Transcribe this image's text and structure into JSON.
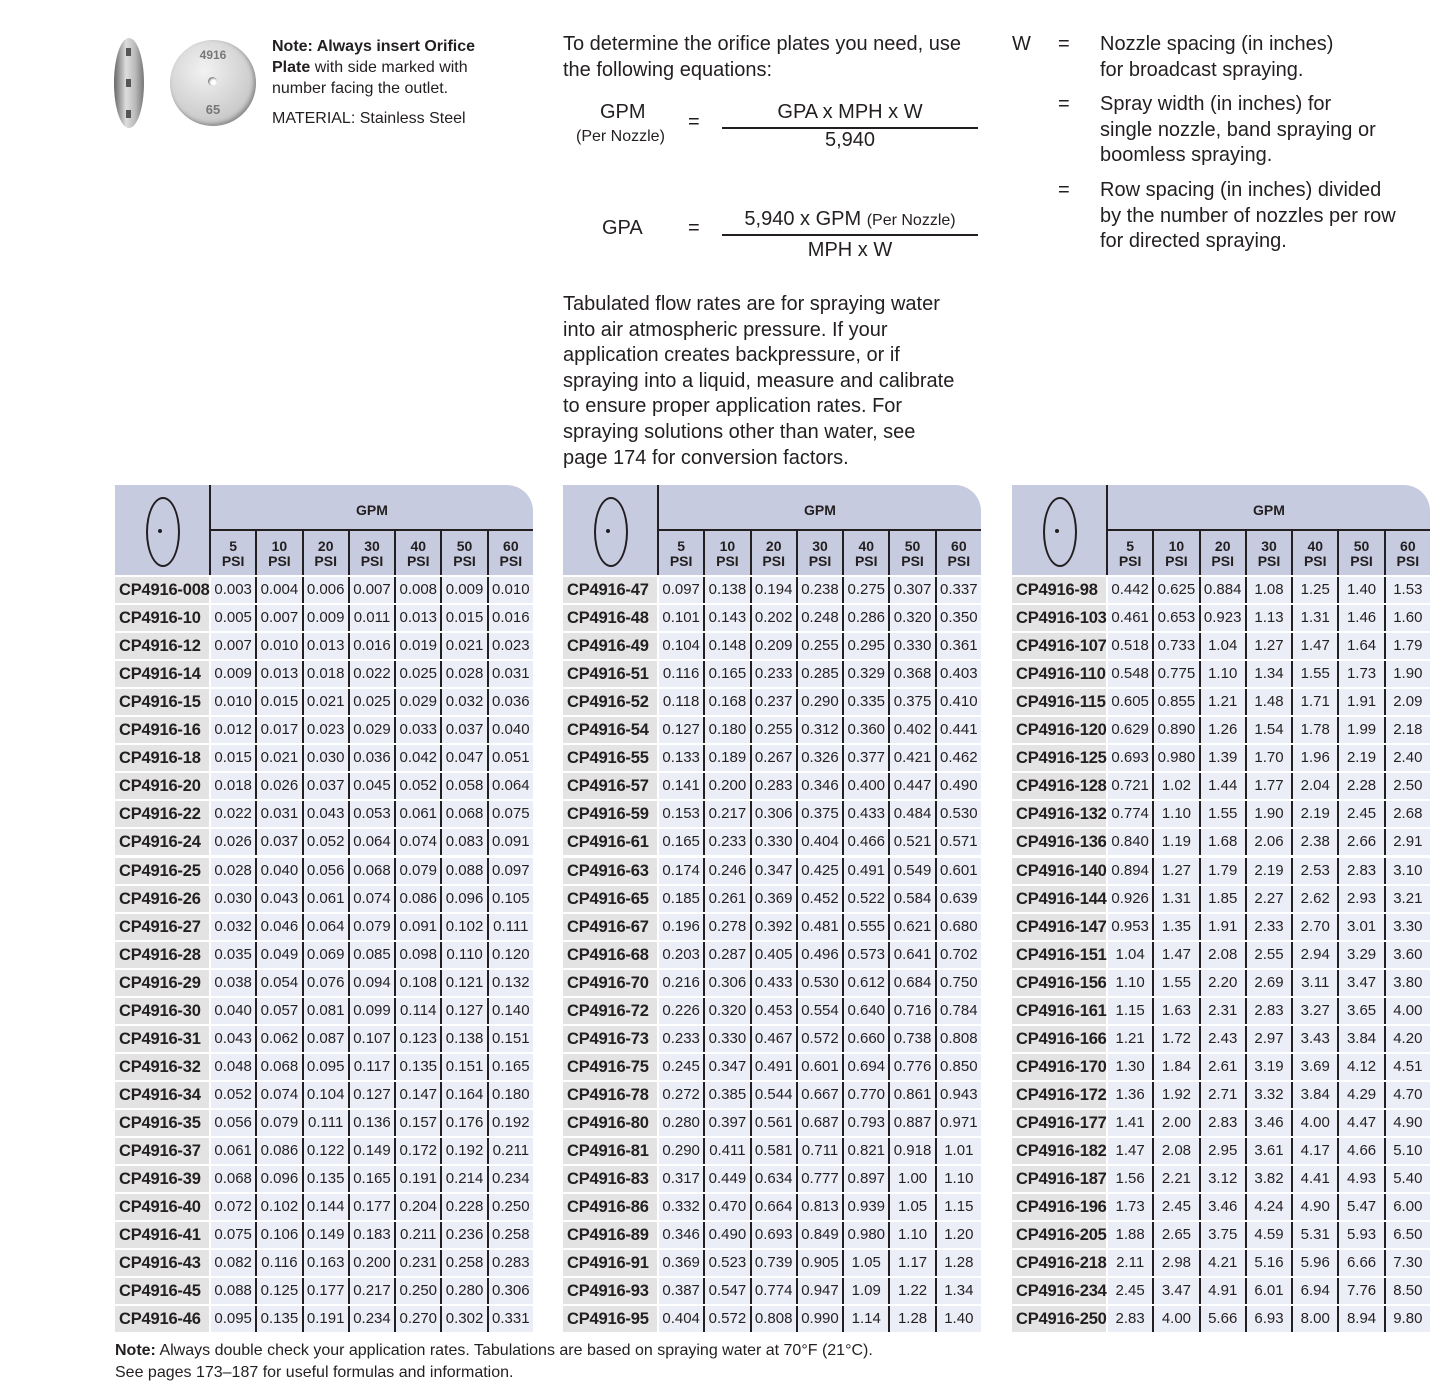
{
  "product_image": {
    "plate_marking_top": "4916",
    "plate_marking_bottom": "65"
  },
  "note": {
    "bold": "Note: Always insert Orifice Plate",
    "text": " with side marked with number facing the outlet."
  },
  "material": "MATERIAL: Stainless Steel",
  "equations": {
    "intro": "To determine the orifice plates you need, use the following equations:",
    "eq1": {
      "lhs": "GPM",
      "lhs_sub": "(Per Nozzle)",
      "equals": "=",
      "numerator": "GPA x MPH x W",
      "denominator": "5,940"
    },
    "eq2": {
      "lhs": "GPA",
      "equals": "=",
      "numerator": "5,940 x GPM",
      "numerator_sub": "(Per Nozzle)",
      "denominator": "MPH x W"
    }
  },
  "definitions": {
    "symbol": "W",
    "items": [
      {
        "equals": "=",
        "text": "Nozzle spacing (in inches) for broadcast spraying."
      },
      {
        "equals": "=",
        "text": "Spray width (in inches) for single nozzle, band spraying or boomless spraying."
      },
      {
        "equals": "=",
        "text": "Row spacing (in inches) divided by the number of nozzles per row for directed spraying."
      }
    ]
  },
  "tabulated_note": "Tabulated flow rates are for spraying water into air atmospheric pressure. If your application creates backpressure, or if spraying into a liquid, measure and calibrate to ensure proper application rates. For spraying solutions other than water, see page 174 for conversion factors.",
  "table_header": {
    "group": "GPM",
    "columns": [
      [
        "5",
        "PSI"
      ],
      [
        "10",
        "PSI"
      ],
      [
        "20",
        "PSI"
      ],
      [
        "30",
        "PSI"
      ],
      [
        "40",
        "PSI"
      ],
      [
        "50",
        "PSI"
      ],
      [
        "60",
        "PSI"
      ]
    ],
    "header_color": "#c7cbe0"
  },
  "tables": [
    {
      "rows": [
        [
          "CP4916-008",
          "0.003",
          "0.004",
          "0.006",
          "0.007",
          "0.008",
          "0.009",
          "0.010"
        ],
        [
          "CP4916-10",
          "0.005",
          "0.007",
          "0.009",
          "0.011",
          "0.013",
          "0.015",
          "0.016"
        ],
        [
          "CP4916-12",
          "0.007",
          "0.010",
          "0.013",
          "0.016",
          "0.019",
          "0.021",
          "0.023"
        ],
        [
          "CP4916-14",
          "0.009",
          "0.013",
          "0.018",
          "0.022",
          "0.025",
          "0.028",
          "0.031"
        ],
        [
          "CP4916-15",
          "0.010",
          "0.015",
          "0.021",
          "0.025",
          "0.029",
          "0.032",
          "0.036"
        ],
        [
          "CP4916-16",
          "0.012",
          "0.017",
          "0.023",
          "0.029",
          "0.033",
          "0.037",
          "0.040"
        ],
        [
          "CP4916-18",
          "0.015",
          "0.021",
          "0.030",
          "0.036",
          "0.042",
          "0.047",
          "0.051"
        ],
        [
          "CP4916-20",
          "0.018",
          "0.026",
          "0.037",
          "0.045",
          "0.052",
          "0.058",
          "0.064"
        ],
        [
          "CP4916-22",
          "0.022",
          "0.031",
          "0.043",
          "0.053",
          "0.061",
          "0.068",
          "0.075"
        ],
        [
          "CP4916-24",
          "0.026",
          "0.037",
          "0.052",
          "0.064",
          "0.074",
          "0.083",
          "0.091"
        ],
        [
          "CP4916-25",
          "0.028",
          "0.040",
          "0.056",
          "0.068",
          "0.079",
          "0.088",
          "0.097"
        ],
        [
          "CP4916-26",
          "0.030",
          "0.043",
          "0.061",
          "0.074",
          "0.086",
          "0.096",
          "0.105"
        ],
        [
          "CP4916-27",
          "0.032",
          "0.046",
          "0.064",
          "0.079",
          "0.091",
          "0.102",
          "0.111"
        ],
        [
          "CP4916-28",
          "0.035",
          "0.049",
          "0.069",
          "0.085",
          "0.098",
          "0.110",
          "0.120"
        ],
        [
          "CP4916-29",
          "0.038",
          "0.054",
          "0.076",
          "0.094",
          "0.108",
          "0.121",
          "0.132"
        ],
        [
          "CP4916-30",
          "0.040",
          "0.057",
          "0.081",
          "0.099",
          "0.114",
          "0.127",
          "0.140"
        ],
        [
          "CP4916-31",
          "0.043",
          "0.062",
          "0.087",
          "0.107",
          "0.123",
          "0.138",
          "0.151"
        ],
        [
          "CP4916-32",
          "0.048",
          "0.068",
          "0.095",
          "0.117",
          "0.135",
          "0.151",
          "0.165"
        ],
        [
          "CP4916-34",
          "0.052",
          "0.074",
          "0.104",
          "0.127",
          "0.147",
          "0.164",
          "0.180"
        ],
        [
          "CP4916-35",
          "0.056",
          "0.079",
          "0.111",
          "0.136",
          "0.157",
          "0.176",
          "0.192"
        ],
        [
          "CP4916-37",
          "0.061",
          "0.086",
          "0.122",
          "0.149",
          "0.172",
          "0.192",
          "0.211"
        ],
        [
          "CP4916-39",
          "0.068",
          "0.096",
          "0.135",
          "0.165",
          "0.191",
          "0.214",
          "0.234"
        ],
        [
          "CP4916-40",
          "0.072",
          "0.102",
          "0.144",
          "0.177",
          "0.204",
          "0.228",
          "0.250"
        ],
        [
          "CP4916-41",
          "0.075",
          "0.106",
          "0.149",
          "0.183",
          "0.211",
          "0.236",
          "0.258"
        ],
        [
          "CP4916-43",
          "0.082",
          "0.116",
          "0.163",
          "0.200",
          "0.231",
          "0.258",
          "0.283"
        ],
        [
          "CP4916-45",
          "0.088",
          "0.125",
          "0.177",
          "0.217",
          "0.250",
          "0.280",
          "0.306"
        ],
        [
          "CP4916-46",
          "0.095",
          "0.135",
          "0.191",
          "0.234",
          "0.270",
          "0.302",
          "0.331"
        ]
      ]
    },
    {
      "rows": [
        [
          "CP4916-47",
          "0.097",
          "0.138",
          "0.194",
          "0.238",
          "0.275",
          "0.307",
          "0.337"
        ],
        [
          "CP4916-48",
          "0.101",
          "0.143",
          "0.202",
          "0.248",
          "0.286",
          "0.320",
          "0.350"
        ],
        [
          "CP4916-49",
          "0.104",
          "0.148",
          "0.209",
          "0.255",
          "0.295",
          "0.330",
          "0.361"
        ],
        [
          "CP4916-51",
          "0.116",
          "0.165",
          "0.233",
          "0.285",
          "0.329",
          "0.368",
          "0.403"
        ],
        [
          "CP4916-52",
          "0.118",
          "0.168",
          "0.237",
          "0.290",
          "0.335",
          "0.375",
          "0.410"
        ],
        [
          "CP4916-54",
          "0.127",
          "0.180",
          "0.255",
          "0.312",
          "0.360",
          "0.402",
          "0.441"
        ],
        [
          "CP4916-55",
          "0.133",
          "0.189",
          "0.267",
          "0.326",
          "0.377",
          "0.421",
          "0.462"
        ],
        [
          "CP4916-57",
          "0.141",
          "0.200",
          "0.283",
          "0.346",
          "0.400",
          "0.447",
          "0.490"
        ],
        [
          "CP4916-59",
          "0.153",
          "0.217",
          "0.306",
          "0.375",
          "0.433",
          "0.484",
          "0.530"
        ],
        [
          "CP4916-61",
          "0.165",
          "0.233",
          "0.330",
          "0.404",
          "0.466",
          "0.521",
          "0.571"
        ],
        [
          "CP4916-63",
          "0.174",
          "0.246",
          "0.347",
          "0.425",
          "0.491",
          "0.549",
          "0.601"
        ],
        [
          "CP4916-65",
          "0.185",
          "0.261",
          "0.369",
          "0.452",
          "0.522",
          "0.584",
          "0.639"
        ],
        [
          "CP4916-67",
          "0.196",
          "0.278",
          "0.392",
          "0.481",
          "0.555",
          "0.621",
          "0.680"
        ],
        [
          "CP4916-68",
          "0.203",
          "0.287",
          "0.405",
          "0.496",
          "0.573",
          "0.641",
          "0.702"
        ],
        [
          "CP4916-70",
          "0.216",
          "0.306",
          "0.433",
          "0.530",
          "0.612",
          "0.684",
          "0.750"
        ],
        [
          "CP4916-72",
          "0.226",
          "0.320",
          "0.453",
          "0.554",
          "0.640",
          "0.716",
          "0.784"
        ],
        [
          "CP4916-73",
          "0.233",
          "0.330",
          "0.467",
          "0.572",
          "0.660",
          "0.738",
          "0.808"
        ],
        [
          "CP4916-75",
          "0.245",
          "0.347",
          "0.491",
          "0.601",
          "0.694",
          "0.776",
          "0.850"
        ],
        [
          "CP4916-78",
          "0.272",
          "0.385",
          "0.544",
          "0.667",
          "0.770",
          "0.861",
          "0.943"
        ],
        [
          "CP4916-80",
          "0.280",
          "0.397",
          "0.561",
          "0.687",
          "0.793",
          "0.887",
          "0.971"
        ],
        [
          "CP4916-81",
          "0.290",
          "0.411",
          "0.581",
          "0.711",
          "0.821",
          "0.918",
          "1.01"
        ],
        [
          "CP4916-83",
          "0.317",
          "0.449",
          "0.634",
          "0.777",
          "0.897",
          "1.00",
          "1.10"
        ],
        [
          "CP4916-86",
          "0.332",
          "0.470",
          "0.664",
          "0.813",
          "0.939",
          "1.05",
          "1.15"
        ],
        [
          "CP4916-89",
          "0.346",
          "0.490",
          "0.693",
          "0.849",
          "0.980",
          "1.10",
          "1.20"
        ],
        [
          "CP4916-91",
          "0.369",
          "0.523",
          "0.739",
          "0.905",
          "1.05",
          "1.17",
          "1.28"
        ],
        [
          "CP4916-93",
          "0.387",
          "0.547",
          "0.774",
          "0.947",
          "1.09",
          "1.22",
          "1.34"
        ],
        [
          "CP4916-95",
          "0.404",
          "0.572",
          "0.808",
          "0.990",
          "1.14",
          "1.28",
          "1.40"
        ]
      ]
    },
    {
      "rows": [
        [
          "CP4916-98",
          "0.442",
          "0.625",
          "0.884",
          "1.08",
          "1.25",
          "1.40",
          "1.53"
        ],
        [
          "CP4916-103",
          "0.461",
          "0.653",
          "0.923",
          "1.13",
          "1.31",
          "1.46",
          "1.60"
        ],
        [
          "CP4916-107",
          "0.518",
          "0.733",
          "1.04",
          "1.27",
          "1.47",
          "1.64",
          "1.79"
        ],
        [
          "CP4916-110",
          "0.548",
          "0.775",
          "1.10",
          "1.34",
          "1.55",
          "1.73",
          "1.90"
        ],
        [
          "CP4916-115",
          "0.605",
          "0.855",
          "1.21",
          "1.48",
          "1.71",
          "1.91",
          "2.09"
        ],
        [
          "CP4916-120",
          "0.629",
          "0.890",
          "1.26",
          "1.54",
          "1.78",
          "1.99",
          "2.18"
        ],
        [
          "CP4916-125",
          "0.693",
          "0.980",
          "1.39",
          "1.70",
          "1.96",
          "2.19",
          "2.40"
        ],
        [
          "CP4916-128",
          "0.721",
          "1.02",
          "1.44",
          "1.77",
          "2.04",
          "2.28",
          "2.50"
        ],
        [
          "CP4916-132",
          "0.774",
          "1.10",
          "1.55",
          "1.90",
          "2.19",
          "2.45",
          "2.68"
        ],
        [
          "CP4916-136",
          "0.840",
          "1.19",
          "1.68",
          "2.06",
          "2.38",
          "2.66",
          "2.91"
        ],
        [
          "CP4916-140",
          "0.894",
          "1.27",
          "1.79",
          "2.19",
          "2.53",
          "2.83",
          "3.10"
        ],
        [
          "CP4916-144",
          "0.926",
          "1.31",
          "1.85",
          "2.27",
          "2.62",
          "2.93",
          "3.21"
        ],
        [
          "CP4916-147",
          "0.953",
          "1.35",
          "1.91",
          "2.33",
          "2.70",
          "3.01",
          "3.30"
        ],
        [
          "CP4916-151",
          "1.04",
          "1.47",
          "2.08",
          "2.55",
          "2.94",
          "3.29",
          "3.60"
        ],
        [
          "CP4916-156",
          "1.10",
          "1.55",
          "2.20",
          "2.69",
          "3.11",
          "3.47",
          "3.80"
        ],
        [
          "CP4916-161",
          "1.15",
          "1.63",
          "2.31",
          "2.83",
          "3.27",
          "3.65",
          "4.00"
        ],
        [
          "CP4916-166",
          "1.21",
          "1.72",
          "2.43",
          "2.97",
          "3.43",
          "3.84",
          "4.20"
        ],
        [
          "CP4916-170",
          "1.30",
          "1.84",
          "2.61",
          "3.19",
          "3.69",
          "4.12",
          "4.51"
        ],
        [
          "CP4916-172",
          "1.36",
          "1.92",
          "2.71",
          "3.32",
          "3.84",
          "4.29",
          "4.70"
        ],
        [
          "CP4916-177",
          "1.41",
          "2.00",
          "2.83",
          "3.46",
          "4.00",
          "4.47",
          "4.90"
        ],
        [
          "CP4916-182",
          "1.47",
          "2.08",
          "2.95",
          "3.61",
          "4.17",
          "4.66",
          "5.10"
        ],
        [
          "CP4916-187",
          "1.56",
          "2.21",
          "3.12",
          "3.82",
          "4.41",
          "4.93",
          "5.40"
        ],
        [
          "CP4916-196",
          "1.73",
          "2.45",
          "3.46",
          "4.24",
          "4.90",
          "5.47",
          "6.00"
        ],
        [
          "CP4916-205",
          "1.88",
          "2.65",
          "3.75",
          "4.59",
          "5.31",
          "5.93",
          "6.50"
        ],
        [
          "CP4916-218",
          "2.11",
          "2.98",
          "4.21",
          "5.16",
          "5.96",
          "6.66",
          "7.30"
        ],
        [
          "CP4916-234",
          "2.45",
          "3.47",
          "4.91",
          "6.01",
          "6.94",
          "7.76",
          "8.50"
        ],
        [
          "CP4916-250",
          "2.83",
          "4.00",
          "5.66",
          "6.93",
          "8.00",
          "8.94",
          "9.80"
        ]
      ]
    }
  ],
  "footnote": {
    "bold": "Note:",
    "line1": " Always double check your application rates. Tabulations are based on spraying water at 70°F (21°C).",
    "line2": "See pages 173–187 for useful formulas and information."
  }
}
